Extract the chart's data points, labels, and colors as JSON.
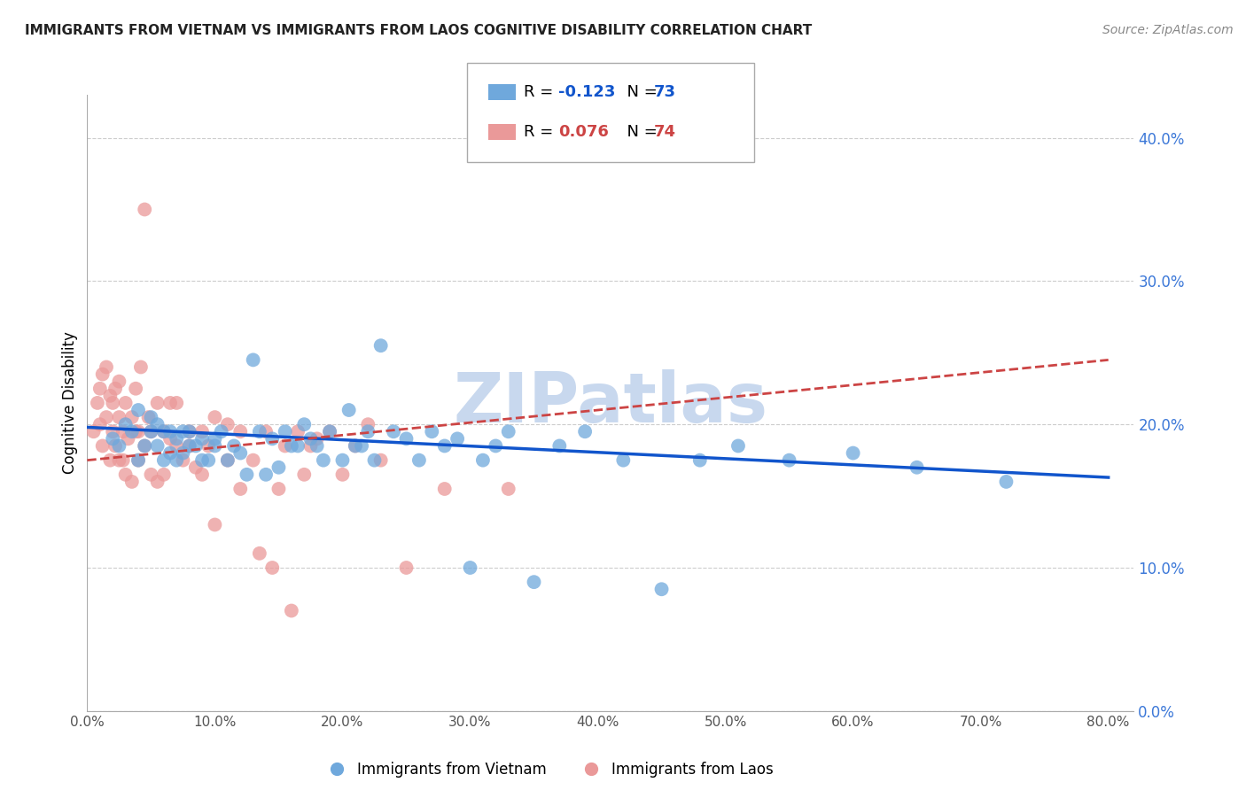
{
  "title": "IMMIGRANTS FROM VIETNAM VS IMMIGRANTS FROM LAOS COGNITIVE DISABILITY CORRELATION CHART",
  "source": "Source: ZipAtlas.com",
  "ylabel": "Cognitive Disability",
  "xlim": [
    0.0,
    0.82
  ],
  "ylim": [
    0.0,
    0.43
  ],
  "yticks": [
    0.0,
    0.1,
    0.2,
    0.3,
    0.4
  ],
  "xticks": [
    0.0,
    0.1,
    0.2,
    0.3,
    0.4,
    0.5,
    0.6,
    0.7,
    0.8
  ],
  "vietnam_R": -0.123,
  "vietnam_N": 73,
  "laos_R": 0.076,
  "laos_N": 74,
  "vietnam_color": "#6fa8dc",
  "laos_color": "#ea9999",
  "vietnam_line_color": "#1155cc",
  "laos_line_color": "#cc4444",
  "axis_color": "#3c78d8",
  "grid_color": "#cccccc",
  "watermark": "ZIPatlas",
  "watermark_color": "#c8d8ee",
  "legend_vietnam_label": "Immigrants from Vietnam",
  "legend_laos_label": "Immigrants from Laos",
  "vietnam_x": [
    0.02,
    0.025,
    0.03,
    0.035,
    0.04,
    0.04,
    0.045,
    0.05,
    0.05,
    0.055,
    0.055,
    0.06,
    0.06,
    0.065,
    0.065,
    0.07,
    0.07,
    0.075,
    0.075,
    0.08,
    0.08,
    0.085,
    0.09,
    0.09,
    0.095,
    0.1,
    0.1,
    0.105,
    0.11,
    0.115,
    0.12,
    0.125,
    0.13,
    0.135,
    0.14,
    0.145,
    0.15,
    0.155,
    0.16,
    0.165,
    0.17,
    0.175,
    0.18,
    0.185,
    0.19,
    0.2,
    0.205,
    0.21,
    0.215,
    0.22,
    0.225,
    0.23,
    0.24,
    0.25,
    0.26,
    0.27,
    0.28,
    0.29,
    0.3,
    0.31,
    0.32,
    0.33,
    0.35,
    0.37,
    0.39,
    0.42,
    0.45,
    0.48,
    0.51,
    0.55,
    0.6,
    0.65,
    0.72
  ],
  "vietnam_y": [
    0.19,
    0.185,
    0.2,
    0.195,
    0.175,
    0.21,
    0.185,
    0.195,
    0.205,
    0.185,
    0.2,
    0.175,
    0.195,
    0.18,
    0.195,
    0.175,
    0.19,
    0.18,
    0.195,
    0.185,
    0.195,
    0.185,
    0.175,
    0.19,
    0.175,
    0.185,
    0.19,
    0.195,
    0.175,
    0.185,
    0.18,
    0.165,
    0.245,
    0.195,
    0.165,
    0.19,
    0.17,
    0.195,
    0.185,
    0.185,
    0.2,
    0.19,
    0.185,
    0.175,
    0.195,
    0.175,
    0.21,
    0.185,
    0.185,
    0.195,
    0.175,
    0.255,
    0.195,
    0.19,
    0.175,
    0.195,
    0.185,
    0.19,
    0.1,
    0.175,
    0.185,
    0.195,
    0.09,
    0.185,
    0.195,
    0.175,
    0.085,
    0.175,
    0.185,
    0.175,
    0.18,
    0.17,
    0.16
  ],
  "laos_x": [
    0.005,
    0.008,
    0.01,
    0.01,
    0.012,
    0.012,
    0.015,
    0.015,
    0.018,
    0.018,
    0.02,
    0.02,
    0.022,
    0.022,
    0.025,
    0.025,
    0.025,
    0.028,
    0.028,
    0.03,
    0.03,
    0.032,
    0.035,
    0.035,
    0.038,
    0.038,
    0.04,
    0.04,
    0.042,
    0.045,
    0.045,
    0.048,
    0.05,
    0.05,
    0.055,
    0.055,
    0.06,
    0.06,
    0.065,
    0.065,
    0.07,
    0.07,
    0.075,
    0.08,
    0.08,
    0.085,
    0.09,
    0.09,
    0.095,
    0.1,
    0.1,
    0.11,
    0.11,
    0.12,
    0.12,
    0.13,
    0.135,
    0.14,
    0.145,
    0.15,
    0.155,
    0.16,
    0.165,
    0.17,
    0.175,
    0.18,
    0.19,
    0.2,
    0.21,
    0.22,
    0.23,
    0.25,
    0.28,
    0.33
  ],
  "laos_y": [
    0.195,
    0.215,
    0.225,
    0.2,
    0.235,
    0.185,
    0.24,
    0.205,
    0.22,
    0.175,
    0.215,
    0.195,
    0.185,
    0.225,
    0.205,
    0.23,
    0.175,
    0.175,
    0.195,
    0.215,
    0.165,
    0.19,
    0.205,
    0.16,
    0.195,
    0.225,
    0.195,
    0.175,
    0.24,
    0.185,
    0.35,
    0.205,
    0.195,
    0.165,
    0.215,
    0.16,
    0.195,
    0.165,
    0.215,
    0.19,
    0.185,
    0.215,
    0.175,
    0.195,
    0.185,
    0.17,
    0.195,
    0.165,
    0.185,
    0.205,
    0.13,
    0.175,
    0.2,
    0.195,
    0.155,
    0.175,
    0.11,
    0.195,
    0.1,
    0.155,
    0.185,
    0.07,
    0.195,
    0.165,
    0.185,
    0.19,
    0.195,
    0.165,
    0.185,
    0.2,
    0.175,
    0.1,
    0.155,
    0.155
  ]
}
